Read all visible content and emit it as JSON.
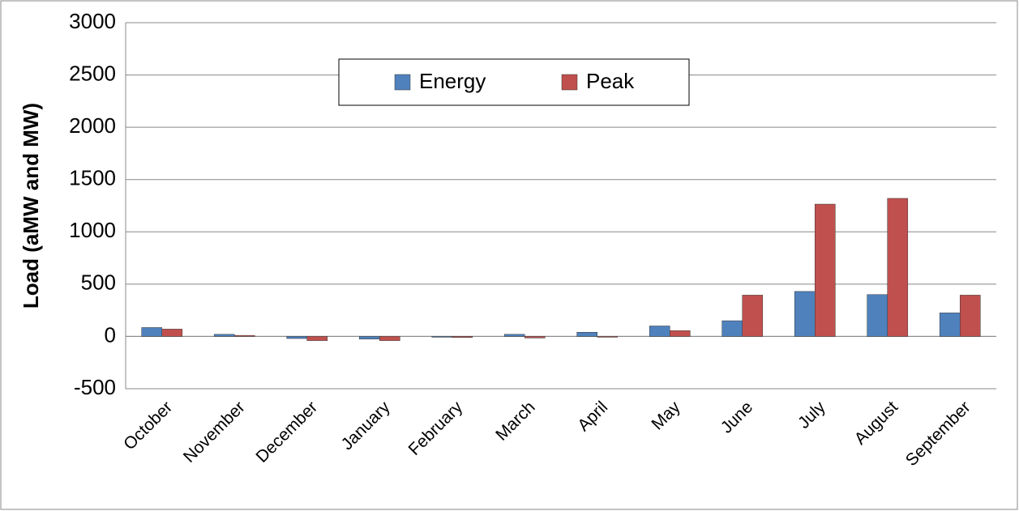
{
  "chart_data": {
    "type": "bar",
    "y_label": "Load (aMW and MW)",
    "categories": [
      "October",
      "November",
      "December",
      "January",
      "February",
      "March",
      "April",
      "May",
      "June",
      "July",
      "August",
      "September"
    ],
    "series": [
      {
        "name": "Energy",
        "color": "#4f81bd",
        "values": [
          85,
          20,
          -20,
          -25,
          -5,
          20,
          40,
          100,
          150,
          430,
          400,
          225
        ]
      },
      {
        "name": "Peak",
        "color": "#c0504d",
        "values": [
          70,
          10,
          -40,
          -40,
          -10,
          -15,
          -5,
          55,
          395,
          1265,
          1320,
          395
        ]
      }
    ],
    "ylim": [
      -500,
      3000
    ],
    "yticks": [
      -500,
      0,
      500,
      1000,
      1500,
      2000,
      2500,
      3000
    ],
    "grid": true,
    "legend": "top"
  }
}
